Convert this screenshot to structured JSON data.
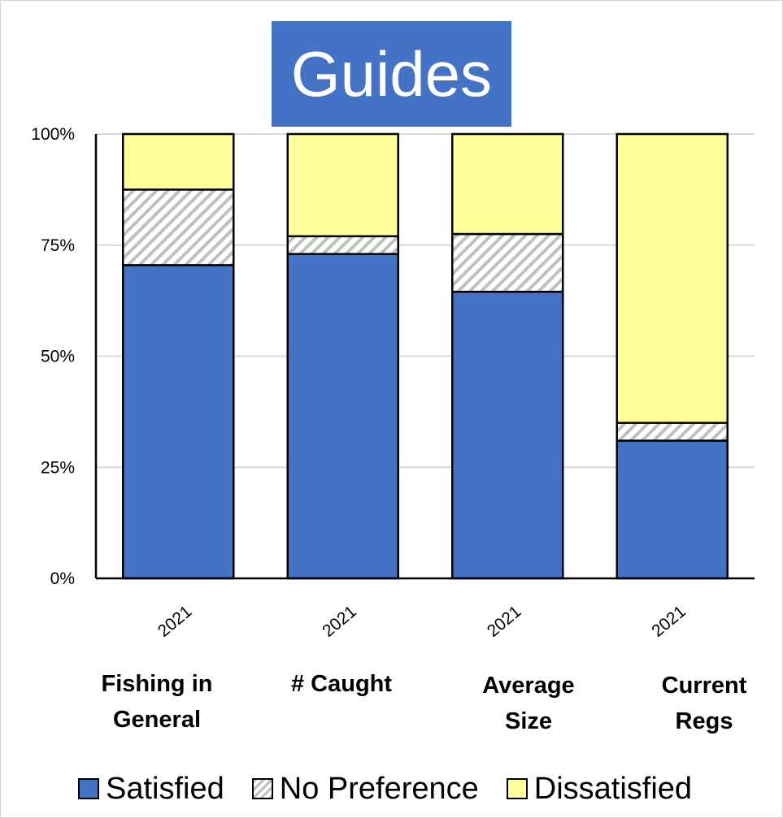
{
  "chart_data": {
    "type": "bar",
    "stacked": true,
    "title": "Guides",
    "categories": [
      "2021",
      "2021",
      "2021",
      "2021"
    ],
    "groups": [
      "Fishing in\nGeneral",
      "# Caught",
      "Average\nSize",
      "Current\nRegs"
    ],
    "yticks": [
      "0%",
      "25%",
      "50%",
      "75%",
      "100%"
    ],
    "ylim": [
      0,
      100
    ],
    "grid": true,
    "legend_position": "bottom",
    "series": [
      {
        "name": "Satisfied",
        "values": [
          70.5,
          73,
          64.5,
          31
        ],
        "color": "#4472c4"
      },
      {
        "name": "No Preference",
        "values": [
          17,
          4,
          13,
          4
        ],
        "color": "#bfbfbf"
      },
      {
        "name": "Dissatisfied",
        "values": [
          12.5,
          23,
          22.5,
          65
        ],
        "color": "#ffff99"
      }
    ]
  }
}
